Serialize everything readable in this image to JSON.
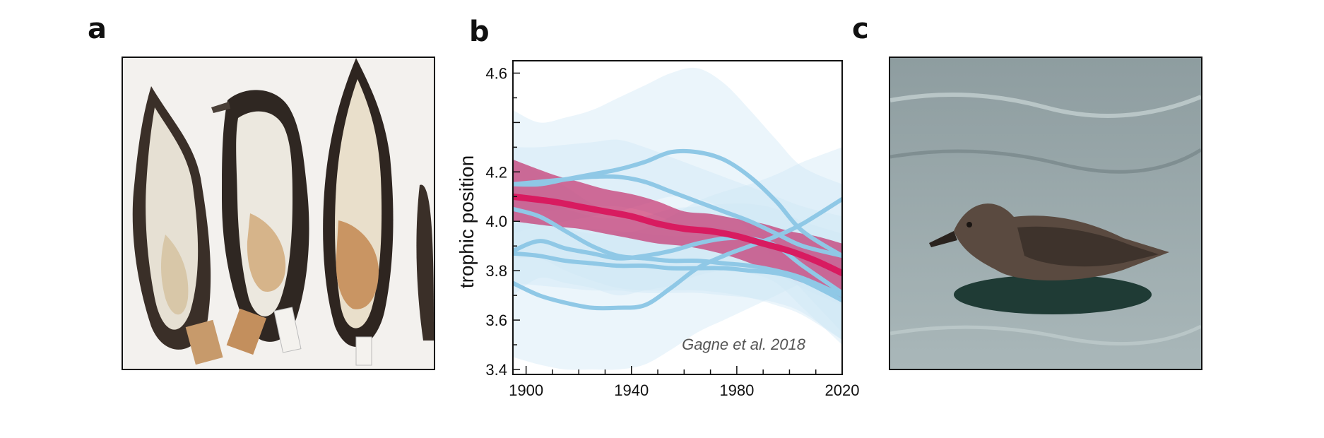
{
  "panels": {
    "a": {
      "letter": "a"
    },
    "b": {
      "letter": "b"
    },
    "c": {
      "letter": "c"
    }
  },
  "chart_data": {
    "type": "line",
    "title": "",
    "xlabel": "",
    "ylabel": "trophic position",
    "xlim": [
      1895,
      2020
    ],
    "ylim": [
      3.38,
      4.65
    ],
    "x_ticks": [
      1900,
      1940,
      1980,
      2020
    ],
    "y_ticks": [
      3.4,
      3.6,
      3.8,
      4.0,
      4.2,
      4.6
    ],
    "grid": false,
    "annotation": "Gagne et al. 2018",
    "colors": {
      "highlight_line": "#d81b60",
      "highlight_band": "#c2185b",
      "other_lines": "#8fc8e6",
      "other_bands": "#cfe6f5"
    },
    "series": [
      {
        "x": [
          1895,
          1910,
          1920,
          1930,
          1940,
          1950,
          1960,
          1970,
          1980,
          1990,
          2000,
          2010,
          2020
        ],
        "y": [
          4.1,
          4.08,
          4.06,
          4.04,
          4.02,
          3.99,
          3.97,
          3.96,
          3.94,
          3.91,
          3.88,
          3.84,
          3.79
        ],
        "lower": [
          4.0,
          3.98,
          3.97,
          3.95,
          3.93,
          3.91,
          3.9,
          3.88,
          3.85,
          3.81,
          3.77,
          3.73,
          3.67
        ],
        "upper": [
          4.25,
          4.19,
          4.16,
          4.13,
          4.11,
          4.08,
          4.04,
          4.03,
          4.01,
          3.99,
          3.96,
          3.94,
          3.91
        ],
        "highlight": true
      },
      {
        "x": [
          1895,
          1905,
          1915,
          1925,
          1935,
          1945,
          1955,
          1965,
          1975,
          1985,
          1995,
          2005,
          2020
        ],
        "y": [
          4.15,
          4.15,
          4.17,
          4.19,
          4.21,
          4.24,
          4.28,
          4.28,
          4.25,
          4.18,
          4.08,
          3.96,
          3.86
        ],
        "lower": [
          3.95,
          3.98,
          4.0,
          4.02,
          4.04,
          4.07,
          4.1,
          4.09,
          4.05,
          3.96,
          3.84,
          3.72,
          3.55
        ],
        "upper": [
          4.45,
          4.4,
          4.42,
          4.45,
          4.5,
          4.55,
          4.6,
          4.62,
          4.56,
          4.45,
          4.33,
          4.22,
          4.15
        ]
      },
      {
        "x": [
          1895,
          1905,
          1915,
          1925,
          1935,
          1945,
          1955,
          1965,
          1975,
          1985,
          1995,
          2005,
          2020
        ],
        "y": [
          3.75,
          3.7,
          3.67,
          3.65,
          3.65,
          3.66,
          3.73,
          3.81,
          3.86,
          3.9,
          3.94,
          3.99,
          4.09
        ],
        "lower": [
          3.45,
          3.42,
          3.4,
          3.4,
          3.4,
          3.42,
          3.48,
          3.55,
          3.6,
          3.65,
          3.7,
          3.75,
          3.8
        ],
        "upper": [
          4.05,
          4.0,
          3.97,
          3.95,
          3.95,
          3.97,
          4.02,
          4.08,
          4.12,
          4.15,
          4.19,
          4.24,
          4.3
        ]
      },
      {
        "x": [
          1895,
          1905,
          1915,
          1925,
          1935,
          1945,
          1955,
          1965,
          1975,
          1985,
          1995,
          2005,
          2020
        ],
        "y": [
          4.05,
          4.02,
          3.96,
          3.9,
          3.86,
          3.85,
          3.84,
          3.84,
          3.83,
          3.82,
          3.8,
          3.77,
          3.7
        ],
        "lower": [
          3.85,
          3.85,
          3.8,
          3.76,
          3.73,
          3.72,
          3.72,
          3.72,
          3.71,
          3.69,
          3.66,
          3.62,
          3.52
        ],
        "upper": [
          4.25,
          4.2,
          4.14,
          4.07,
          4.02,
          4.0,
          3.98,
          3.98,
          3.97,
          3.96,
          3.94,
          3.93,
          3.9
        ]
      },
      {
        "x": [
          1895,
          1905,
          1915,
          1925,
          1935,
          1945,
          1955,
          1965,
          1975,
          1985,
          1995,
          2005,
          2020
        ],
        "y": [
          3.88,
          3.92,
          3.89,
          3.87,
          3.85,
          3.86,
          3.88,
          3.91,
          3.93,
          3.93,
          3.9,
          3.82,
          3.71
        ],
        "lower": [
          3.7,
          3.77,
          3.75,
          3.73,
          3.7,
          3.72,
          3.74,
          3.78,
          3.8,
          3.79,
          3.75,
          3.65,
          3.5
        ],
        "upper": [
          4.1,
          4.08,
          4.05,
          4.02,
          4.01,
          4.02,
          4.05,
          4.06,
          4.07,
          4.07,
          4.05,
          4.0,
          3.95
        ]
      },
      {
        "x": [
          1895,
          1905,
          1915,
          1925,
          1935,
          1945,
          1955,
          1965,
          1975,
          1985,
          1995,
          2005,
          2020
        ],
        "y": [
          3.87,
          3.86,
          3.84,
          3.83,
          3.82,
          3.82,
          3.81,
          3.81,
          3.81,
          3.8,
          3.79,
          3.76,
          3.68
        ],
        "lower": [
          3.75,
          3.74,
          3.73,
          3.72,
          3.72,
          3.71,
          3.71,
          3.71,
          3.7,
          3.69,
          3.67,
          3.63,
          3.52
        ],
        "upper": [
          4.0,
          3.99,
          3.98,
          3.97,
          3.96,
          3.95,
          3.94,
          3.94,
          3.93,
          3.92,
          3.91,
          3.9,
          3.86
        ]
      },
      {
        "x": [
          1895,
          1905,
          1915,
          1925,
          1935,
          1945,
          1955,
          1965,
          1975,
          1985,
          1995,
          2005,
          2020
        ],
        "y": [
          4.15,
          4.16,
          4.17,
          4.18,
          4.18,
          4.16,
          4.12,
          4.08,
          4.04,
          4.0,
          3.95,
          3.9,
          3.86
        ],
        "lower": [
          4.02,
          4.04,
          4.05,
          4.06,
          4.06,
          4.04,
          4.0,
          3.95,
          3.9,
          3.85,
          3.79,
          3.73,
          3.66
        ],
        "upper": [
          4.3,
          4.3,
          4.31,
          4.32,
          4.33,
          4.3,
          4.26,
          4.22,
          4.18,
          4.14,
          4.1,
          4.06,
          4.02
        ]
      }
    ]
  }
}
